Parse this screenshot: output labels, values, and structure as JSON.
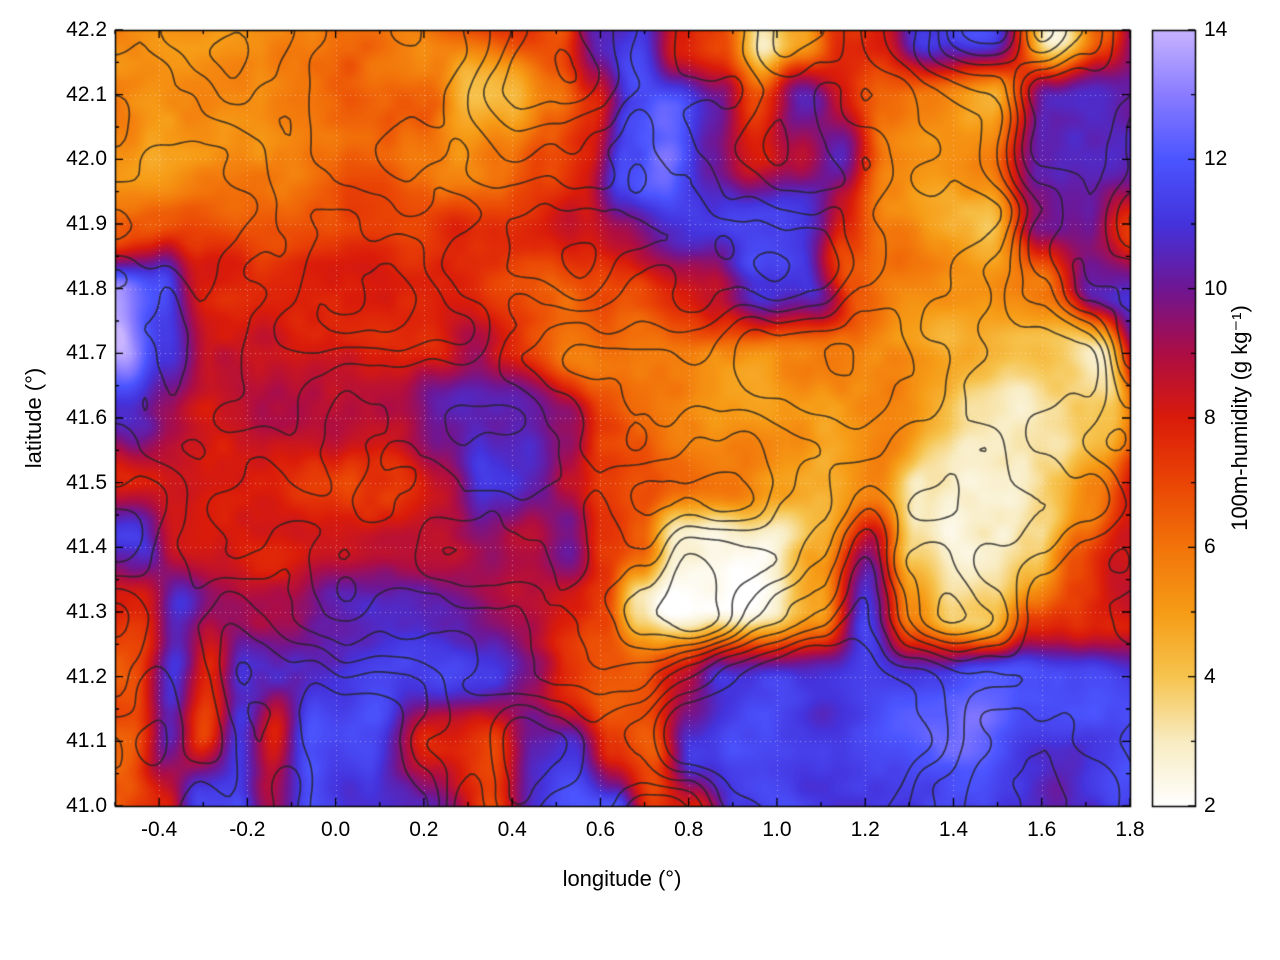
{
  "figure": {
    "background": "#ffffff",
    "border_color": "#000000",
    "grid_style": "dotted"
  },
  "chart_data": {
    "type": "heatmap",
    "title": "",
    "xlabel": "longitude (°)",
    "ylabel": "latitude (°)",
    "x_range": [
      -0.5,
      1.8
    ],
    "y_range": [
      41.0,
      42.2
    ],
    "grid_on": true,
    "legend": "none",
    "x_ticks": [
      {
        "v": -0.4,
        "t": "-0.4"
      },
      {
        "v": -0.2,
        "t": "-0.2"
      },
      {
        "v": 0.0,
        "t": "0.0"
      },
      {
        "v": 0.2,
        "t": "0.2"
      },
      {
        "v": 0.4,
        "t": "0.4"
      },
      {
        "v": 0.6,
        "t": "0.6"
      },
      {
        "v": 0.8,
        "t": "0.8"
      },
      {
        "v": 1.0,
        "t": "1.0"
      },
      {
        "v": 1.2,
        "t": "1.2"
      },
      {
        "v": 1.4,
        "t": "1.4"
      },
      {
        "v": 1.6,
        "t": "1.6"
      },
      {
        "v": 1.8,
        "t": "1.8"
      }
    ],
    "y_ticks": [
      {
        "v": 41.0,
        "t": "41.0"
      },
      {
        "v": 41.1,
        "t": "41.1"
      },
      {
        "v": 41.2,
        "t": "41.2"
      },
      {
        "v": 41.3,
        "t": "41.3"
      },
      {
        "v": 41.4,
        "t": "41.4"
      },
      {
        "v": 41.5,
        "t": "41.5"
      },
      {
        "v": 41.6,
        "t": "41.6"
      },
      {
        "v": 41.7,
        "t": "41.7"
      },
      {
        "v": 41.8,
        "t": "41.8"
      },
      {
        "v": 41.9,
        "t": "41.9"
      },
      {
        "v": 42.0,
        "t": "42.0"
      },
      {
        "v": 42.1,
        "t": "42.1"
      },
      {
        "v": 42.2,
        "t": "42.2"
      }
    ],
    "colorbar": {
      "label": "100m-humidity (g kg⁻¹)",
      "range": [
        2,
        14
      ],
      "ticks": [
        {
          "v": 2,
          "t": "2"
        },
        {
          "v": 4,
          "t": "4"
        },
        {
          "v": 6,
          "t": "6"
        },
        {
          "v": 8,
          "t": "8"
        },
        {
          "v": 10,
          "t": "10"
        },
        {
          "v": 12,
          "t": "12"
        },
        {
          "v": 14,
          "t": "14"
        }
      ],
      "stops": [
        [
          2,
          "#ffffff"
        ],
        [
          3,
          "#f8ecc2"
        ],
        [
          4,
          "#f6c44e"
        ],
        [
          5,
          "#f69c16"
        ],
        [
          6,
          "#f2740a"
        ],
        [
          7,
          "#ea4505"
        ],
        [
          8,
          "#da1b0a"
        ],
        [
          9,
          "#ad0d45"
        ],
        [
          10,
          "#6f1693"
        ],
        [
          11,
          "#4433dd"
        ],
        [
          12,
          "#4b55ff"
        ],
        [
          13,
          "#8a7cff"
        ],
        [
          14,
          "#c8b4ff"
        ]
      ]
    },
    "contour_overlay": {
      "color": "#2a2a2a",
      "description": "unlabeled dark terrain-style contour lines overlaid on the humidity field"
    },
    "grid": {
      "units": "g kg⁻¹",
      "lons": [
        -0.5,
        -0.4,
        -0.3,
        -0.2,
        -0.1,
        0.0,
        0.1,
        0.2,
        0.3,
        0.4,
        0.5,
        0.6,
        0.7,
        0.8,
        0.9,
        1.0,
        1.1,
        1.2,
        1.3,
        1.4,
        1.5,
        1.6,
        1.7,
        1.8
      ],
      "lats_top_to_bottom": [
        42.2,
        42.1,
        42.0,
        41.9,
        41.8,
        41.7,
        41.6,
        41.5,
        41.4,
        41.3,
        41.2,
        41.1,
        41.0
      ],
      "values_approx": [
        [
          6.5,
          6.0,
          6.0,
          6.2,
          6.5,
          7.0,
          7.0,
          7.5,
          8.0,
          8.5,
          7.5,
          11.0,
          11.5,
          8.0,
          7.0,
          3.0,
          5.0,
          7.5,
          8.0,
          11.0,
          11.5,
          3.5,
          7.0,
          11.0
        ],
        [
          6.0,
          5.8,
          6.0,
          6.2,
          6.8,
          7.2,
          6.5,
          6.0,
          4.0,
          4.5,
          6.5,
          8.0,
          11.5,
          12.0,
          10.5,
          7.5,
          10.5,
          8.0,
          6.5,
          6.0,
          5.0,
          11.5,
          12.0,
          11.5
        ],
        [
          5.8,
          5.5,
          5.8,
          6.0,
          6.2,
          6.0,
          5.5,
          5.0,
          4.5,
          5.0,
          6.5,
          7.5,
          11.0,
          12.0,
          9.5,
          7.5,
          8.0,
          10.5,
          6.5,
          6.0,
          6.5,
          11.0,
          12.0,
          11.5
        ],
        [
          6.5,
          6.8,
          7.0,
          6.8,
          6.5,
          6.2,
          6.0,
          6.0,
          6.5,
          7.0,
          7.5,
          8.0,
          9.0,
          10.0,
          10.5,
          11.5,
          11.0,
          8.0,
          6.0,
          5.5,
          4.5,
          10.5,
          11.0,
          8.0
        ],
        [
          13.0,
          11.5,
          7.5,
          7.2,
          7.0,
          7.0,
          7.2,
          7.0,
          6.8,
          6.5,
          6.5,
          6.8,
          7.0,
          7.5,
          9.0,
          11.5,
          11.0,
          6.5,
          5.5,
          5.5,
          5.8,
          6.5,
          11.0,
          11.5
        ],
        [
          13.5,
          11.0,
          8.0,
          7.5,
          7.5,
          7.5,
          7.2,
          7.0,
          8.5,
          7.0,
          6.5,
          6.5,
          6.2,
          6.0,
          5.8,
          5.5,
          5.5,
          5.5,
          5.0,
          4.8,
          4.5,
          4.0,
          3.5,
          11.0
        ],
        [
          11.0,
          9.0,
          7.8,
          7.5,
          7.5,
          7.8,
          8.0,
          9.5,
          10.5,
          11.0,
          10.5,
          8.0,
          7.0,
          6.2,
          6.0,
          5.8,
          5.2,
          5.0,
          4.5,
          3.8,
          3.5,
          4.0,
          4.5,
          7.5
        ],
        [
          7.5,
          7.5,
          7.5,
          7.2,
          7.0,
          7.0,
          7.2,
          9.0,
          11.5,
          11.5,
          10.0,
          8.5,
          7.5,
          6.5,
          6.0,
          5.0,
          5.0,
          5.5,
          3.0,
          2.5,
          2.8,
          4.0,
          5.5,
          8.0
        ],
        [
          10.5,
          7.8,
          7.5,
          7.5,
          7.5,
          7.8,
          8.5,
          8.5,
          9.5,
          9.5,
          10.5,
          8.0,
          7.0,
          3.0,
          2.5,
          2.5,
          4.5,
          9.0,
          3.5,
          2.5,
          2.5,
          3.5,
          6.5,
          8.0
        ],
        [
          8.0,
          10.5,
          9.0,
          8.8,
          9.0,
          10.0,
          10.0,
          9.5,
          9.5,
          9.5,
          9.0,
          8.0,
          4.0,
          2.2,
          2.2,
          2.5,
          4.5,
          11.0,
          5.5,
          3.0,
          3.5,
          6.5,
          7.0,
          7.5
        ],
        [
          7.5,
          11.0,
          7.5,
          10.5,
          10.5,
          10.5,
          11.0,
          11.0,
          10.5,
          9.5,
          8.0,
          7.5,
          8.0,
          9.5,
          11.0,
          11.5,
          11.0,
          11.0,
          11.0,
          11.0,
          11.0,
          11.0,
          11.0,
          11.0
        ],
        [
          7.0,
          11.0,
          7.5,
          11.0,
          7.5,
          11.5,
          11.5,
          8.0,
          7.5,
          11.0,
          11.0,
          7.5,
          6.5,
          11.0,
          11.5,
          11.5,
          11.5,
          11.5,
          11.5,
          11.5,
          11.5,
          11.5,
          11.5,
          11.5
        ],
        [
          7.5,
          8.0,
          11.0,
          11.0,
          8.0,
          11.5,
          11.5,
          11.0,
          7.5,
          11.0,
          11.5,
          11.5,
          6.5,
          7.0,
          11.5,
          12.0,
          11.5,
          11.5,
          11.5,
          11.5,
          11.5,
          11.5,
          11.5,
          11.5
        ]
      ]
    }
  }
}
